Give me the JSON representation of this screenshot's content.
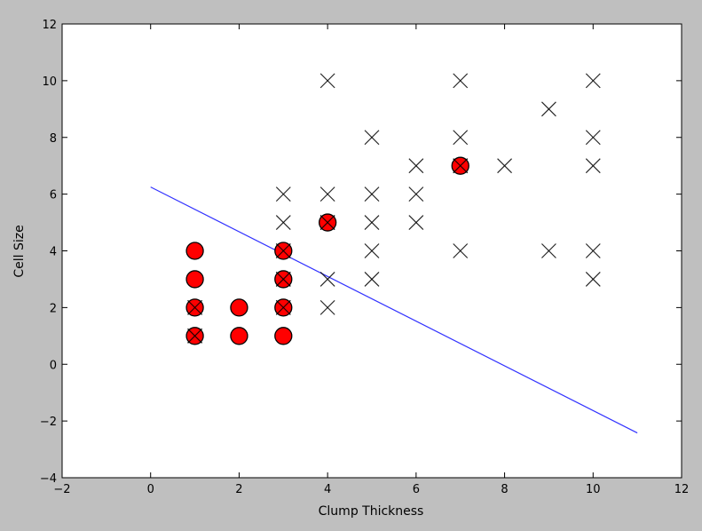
{
  "chart_data": {
    "type": "scatter",
    "title": "",
    "xlabel": "Clump Thickness",
    "ylabel": "Cell Size",
    "xlim": [
      -2,
      12
    ],
    "ylim": [
      -4,
      12
    ],
    "xticks": [
      -2,
      0,
      2,
      4,
      6,
      8,
      10,
      12
    ],
    "yticks": [
      -4,
      -2,
      0,
      2,
      4,
      6,
      8,
      10,
      12
    ],
    "grid": false,
    "legend": "none",
    "background_color": "#ffffff",
    "figure_color": "#bfbfbf",
    "series": [
      {
        "marker": "x",
        "color": "#000000",
        "points": [
          [
            3,
            6
          ],
          [
            3,
            5
          ],
          [
            3,
            4
          ],
          [
            3,
            3
          ],
          [
            3,
            2
          ],
          [
            4,
            10
          ],
          [
            4,
            6
          ],
          [
            4,
            5
          ],
          [
            4,
            3
          ],
          [
            4,
            2
          ],
          [
            5,
            8
          ],
          [
            5,
            6
          ],
          [
            5,
            5
          ],
          [
            5,
            4
          ],
          [
            5,
            3
          ],
          [
            6,
            7
          ],
          [
            6,
            6
          ],
          [
            6,
            5
          ],
          [
            7,
            10
          ],
          [
            7,
            8
          ],
          [
            7,
            7
          ],
          [
            7,
            4
          ],
          [
            8,
            7
          ],
          [
            9,
            9
          ],
          [
            9,
            4
          ],
          [
            10,
            10
          ],
          [
            10,
            8
          ],
          [
            10,
            7
          ],
          [
            10,
            4
          ],
          [
            10,
            3
          ],
          [
            1,
            2
          ],
          [
            1,
            1
          ]
        ]
      },
      {
        "marker": "o",
        "color": "#ff0000",
        "points": [
          [
            1,
            4
          ],
          [
            1,
            3
          ],
          [
            1,
            2
          ],
          [
            1,
            1
          ],
          [
            2,
            2
          ],
          [
            2,
            1
          ],
          [
            3,
            4
          ],
          [
            3,
            3
          ],
          [
            3,
            2
          ],
          [
            3,
            1
          ],
          [
            4,
            5
          ],
          [
            7,
            7
          ]
        ]
      },
      {
        "type": "line",
        "color": "#3333ff",
        "x": [
          0,
          11
        ],
        "y": [
          6.25,
          -2.42
        ]
      }
    ]
  }
}
